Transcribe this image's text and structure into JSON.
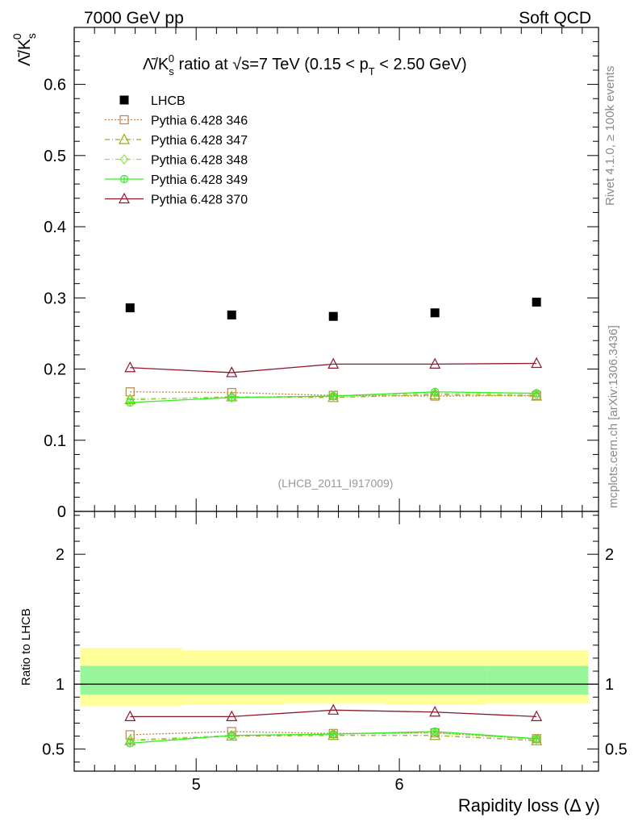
{
  "header": {
    "left": "7000 GeV pp",
    "right": "Soft QCD"
  },
  "side_labels": {
    "top": "Rivet 4.1.0, ≥ 100k events",
    "bottom": "mcplots.cern.ch [arXiv:1306.3436]"
  },
  "watermark": "(LHCB_2011_I917009)",
  "chart_data": [
    {
      "type": "scatter",
      "title": "Λ̄/K_s^0 ratio at √s=7 TeV (0.15 < p_T < 2.50 GeV)",
      "ylabel": "Λ̄/K_s^0",
      "xlim": [
        4.4,
        6.98
      ],
      "ylim": [
        0,
        0.68
      ],
      "yticks": [
        "0",
        "0.1",
        "0.2",
        "0.3",
        "0.4",
        "0.5",
        "0.6"
      ],
      "ytick_values": [
        0,
        0.1,
        0.2,
        0.3,
        0.4,
        0.5,
        0.6
      ],
      "x": [
        4.675,
        5.175,
        5.675,
        6.175,
        6.675
      ],
      "series": [
        {
          "name": "LHCB",
          "marker": "square-filled",
          "color": "#000000",
          "line": "none",
          "values": [
            0.286,
            0.276,
            0.274,
            0.279,
            0.294
          ]
        },
        {
          "name": "Pythia 6.428 346",
          "marker": "square-open",
          "color": "#b8864b",
          "line": "dotted",
          "values": [
            0.168,
            0.167,
            0.163,
            0.162,
            0.163
          ]
        },
        {
          "name": "Pythia 6.428 347",
          "marker": "triangle-open",
          "color": "#9aaa1a",
          "line": "dashdot",
          "values": [
            0.157,
            0.161,
            0.16,
            0.164,
            0.162
          ]
        },
        {
          "name": "Pythia 6.428 348",
          "marker": "diamond-open",
          "color": "#8ee04a",
          "line": "dashdot",
          "values": [
            0.158,
            0.16,
            0.162,
            0.166,
            0.164
          ]
        },
        {
          "name": "Pythia 6.428 349",
          "marker": "circle-cross",
          "color": "#33ee22",
          "line": "solid",
          "values": [
            0.153,
            0.16,
            0.162,
            0.168,
            0.166
          ]
        },
        {
          "name": "Pythia 6.428 370",
          "marker": "triangle-open",
          "color": "#8b1a2b",
          "line": "solid",
          "values": [
            0.202,
            0.195,
            0.207,
            0.207,
            0.208
          ]
        }
      ]
    },
    {
      "type": "line",
      "ylabel": "Ratio to LHCB",
      "xlabel": "Rapidity loss (Δ y)",
      "xlim": [
        4.4,
        6.98
      ],
      "ylim": [
        0.33,
        2.33
      ],
      "yticks": [
        "0.5",
        "1",
        "2"
      ],
      "ytick_values": [
        0.5,
        1,
        2
      ],
      "xticks": [
        "5",
        "6"
      ],
      "xtick_values": [
        5,
        6
      ],
      "x": [
        4.675,
        5.175,
        5.675,
        6.175,
        6.675
      ],
      "bins": [
        [
          4.43,
          4.93
        ],
        [
          4.93,
          5.43
        ],
        [
          5.43,
          5.93
        ],
        [
          5.93,
          6.43
        ],
        [
          6.43,
          6.93
        ]
      ],
      "band_outer": [
        [
          0.83,
          1.28
        ],
        [
          0.84,
          1.26
        ],
        [
          0.85,
          1.26
        ],
        [
          0.84,
          1.26
        ],
        [
          0.85,
          1.26
        ]
      ],
      "band_inner": [
        [
          0.92,
          1.14
        ],
        [
          0.92,
          1.14
        ],
        [
          0.92,
          1.14
        ],
        [
          0.92,
          1.14
        ],
        [
          0.92,
          1.14
        ]
      ],
      "series": [
        {
          "name": "Pythia 6.428 346",
          "color": "#b8864b",
          "values": [
            0.61,
            0.635,
            0.62,
            0.625,
            0.58
          ]
        },
        {
          "name": "Pythia 6.428 347",
          "color": "#9aaa1a",
          "values": [
            0.565,
            0.6,
            0.605,
            0.605,
            0.565
          ]
        },
        {
          "name": "Pythia 6.428 348",
          "color": "#8ee04a",
          "values": [
            0.57,
            0.605,
            0.615,
            0.625,
            0.575
          ]
        },
        {
          "name": "Pythia 6.428 349",
          "color": "#33ee22",
          "values": [
            0.545,
            0.605,
            0.615,
            0.635,
            0.58
          ]
        },
        {
          "name": "Pythia 6.428 370",
          "color": "#8b1a2b",
          "values": [
            0.75,
            0.75,
            0.8,
            0.785,
            0.75
          ]
        }
      ]
    }
  ]
}
